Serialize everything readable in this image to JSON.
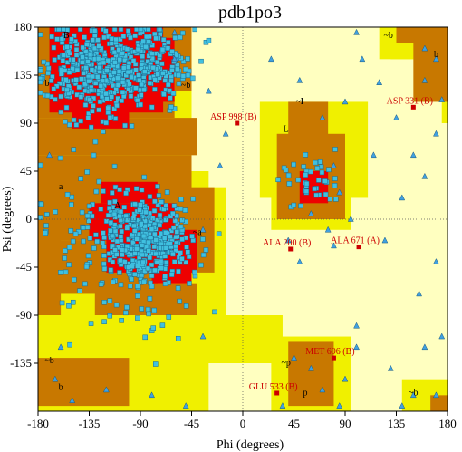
{
  "chart_data": {
    "type": "scatter",
    "title": "pdb1po3",
    "xlabel": "Phi (degrees)",
    "ylabel": "Psi (degrees)",
    "xlim": [
      -180,
      180
    ],
    "ylim": [
      -180,
      180
    ],
    "xticks": [
      -180,
      -135,
      -90,
      -45,
      0,
      45,
      90,
      135,
      180
    ],
    "yticks": [
      180,
      135,
      90,
      45,
      0,
      -45,
      -90,
      -135
    ],
    "xtick_labels": [
      "-180",
      "-135",
      "-90",
      "-45",
      "0",
      "45",
      "90",
      "135",
      "180"
    ],
    "ytick_labels": [
      "180",
      "135",
      "90",
      "45",
      "0",
      "-45",
      "-90",
      "-135"
    ],
    "grid": "dotted lines at phi=0 and psi=0",
    "colors": {
      "core": "#ee0000",
      "allowed": "#c87800",
      "generous": "#f0f000",
      "disallowed": "#ffffc0",
      "residue_square": "#40c0e0",
      "glycine_triangle": "#40a0e0",
      "outlier": "#cc0000"
    },
    "region_labels": [
      {
        "text": "B",
        "phi": -155,
        "psi": 170
      },
      {
        "text": "b",
        "phi": -172,
        "psi": 125
      },
      {
        "text": "A",
        "phi": -110,
        "psi": 10
      },
      {
        "text": "a",
        "phi": -160,
        "psi": 28
      },
      {
        "text": "L",
        "phi": 38,
        "psi": 82
      },
      {
        "text": "l",
        "phi": 52,
        "psi": 108
      },
      {
        "text": "~b",
        "phi": -50,
        "psi": 123
      },
      {
        "text": "~a",
        "phi": -40,
        "psi": -15
      },
      {
        "text": "~l",
        "phi": 50,
        "psi": 108
      },
      {
        "text": "~p",
        "phi": 38,
        "psi": -137
      },
      {
        "text": "p",
        "phi": 55,
        "psi": -165
      },
      {
        "text": "~b",
        "phi": 128,
        "psi": 170
      },
      {
        "text": "b",
        "phi": 170,
        "psi": 152
      },
      {
        "text": "~b",
        "phi": 150,
        "psi": -165
      },
      {
        "text": "~b",
        "phi": -170,
        "psi": -135
      },
      {
        "text": "b",
        "phi": -160,
        "psi": -160
      }
    ],
    "outliers": [
      {
        "label": "ASP 998 (B)",
        "phi": -5,
        "psi": 90
      },
      {
        "label": "ASP 331 (B)",
        "phi": 150,
        "psi": 105
      },
      {
        "label": "ALA 200 (B)",
        "phi": 42,
        "psi": -28
      },
      {
        "label": "ALA 671 (A)",
        "phi": 102,
        "psi": -26
      },
      {
        "label": "MET 696 (B)",
        "phi": 80,
        "psi": -130
      },
      {
        "label": "GLU 533 (B)",
        "phi": 30,
        "psi": -163
      }
    ]
  }
}
